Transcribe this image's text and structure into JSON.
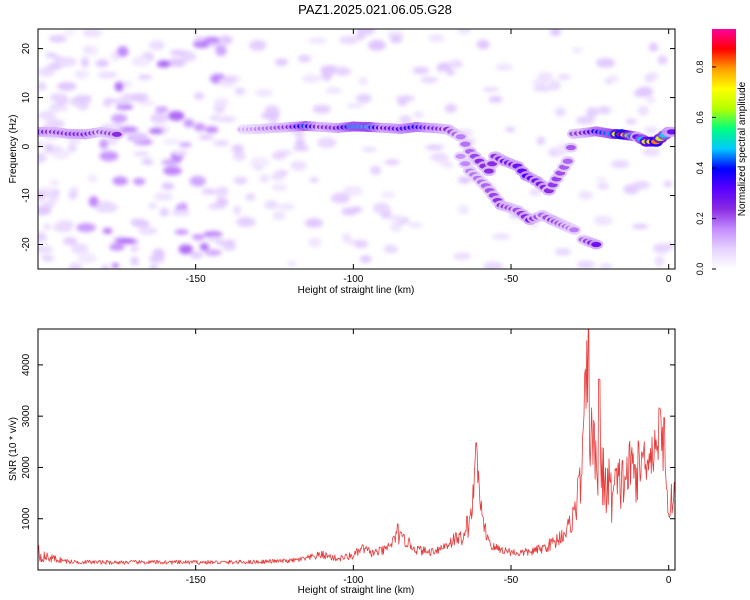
{
  "title": "PAZ1.2025.021.06.05.G28",
  "colors": {
    "snr_line": "#e83a3a",
    "colormap": [
      "#ffffff",
      "#e6d2ff",
      "#c48cff",
      "#8a2be2",
      "#5a00ff",
      "#0000ff",
      "#00c8ff",
      "#00ff80",
      "#b4ff00",
      "#ffff00",
      "#ffa000",
      "#ff0000",
      "#ff00a0"
    ]
  },
  "chart_data": [
    {
      "type": "heatmap",
      "xlabel": "Height of straight line (km)",
      "ylabel": "Frequency (Hz)",
      "xlim": [
        -200,
        2
      ],
      "ylim": [
        -25,
        24
      ],
      "xticks": [
        -150,
        -100,
        -50,
        0
      ],
      "xtick_labels": [
        "-150",
        "-100",
        "-50",
        "0"
      ],
      "yticks": [
        -20,
        -10,
        0,
        10,
        20
      ],
      "ytick_labels": [
        "-20",
        "-10",
        "0",
        "10",
        "20"
      ],
      "colorbar": {
        "label": "Normalized spectral amplitude",
        "range": [
          0,
          0.95
        ],
        "ticks": [
          0,
          0.2,
          0.4,
          0.6,
          0.8
        ],
        "tick_labels": [
          "0.0",
          "0.2",
          "0.4",
          "0.6",
          "0.8"
        ]
      },
      "ridge": [
        [
          -200,
          3,
          0.3
        ],
        [
          -195,
          3,
          0.25
        ],
        [
          -190,
          2.6,
          0.28
        ],
        [
          -185,
          2.5,
          0.3
        ],
        [
          -180,
          3,
          0.22
        ],
        [
          -175,
          2.5,
          0.25
        ],
        [
          -135,
          3.5,
          0.12
        ],
        [
          -130,
          3.6,
          0.18
        ],
        [
          -125,
          3.8,
          0.22
        ],
        [
          -120,
          4,
          0.26
        ],
        [
          -115,
          4.2,
          0.45
        ],
        [
          -110,
          4,
          0.25
        ],
        [
          -105,
          3.8,
          0.3
        ],
        [
          -100,
          4.1,
          0.48
        ],
        [
          -95,
          4,
          0.5
        ],
        [
          -90,
          3.8,
          0.3
        ],
        [
          -85,
          3.6,
          0.35
        ],
        [
          -80,
          4,
          0.42
        ],
        [
          -75,
          3.8,
          0.3
        ],
        [
          -70,
          3.5,
          0.25
        ],
        [
          -66,
          2,
          0.18
        ],
        [
          -63,
          -1,
          0.2
        ],
        [
          -60,
          -3,
          0.25
        ],
        [
          -57,
          -5,
          0.25
        ],
        [
          -55,
          -2,
          0.25
        ],
        [
          -52,
          -3,
          0.3
        ],
        [
          -48,
          -4,
          0.3
        ],
        [
          -45,
          -6,
          0.35
        ],
        [
          -42,
          -7,
          0.3
        ],
        [
          -38,
          -9,
          0.25
        ],
        [
          -32,
          -3,
          0.2
        ],
        [
          -30,
          2.6,
          0.22
        ],
        [
          -27,
          2.8,
          0.26
        ],
        [
          -23,
          3.1,
          0.4
        ],
        [
          -18,
          2.6,
          0.48
        ],
        [
          -15,
          2.5,
          0.95
        ],
        [
          -10,
          2,
          0.3
        ],
        [
          -7,
          1,
          0.7
        ],
        [
          -4,
          1,
          0.85
        ],
        [
          0,
          3,
          0.35
        ],
        [
          1,
          3,
          0.3
        ]
      ],
      "branches": [
        [
          -66,
          -2,
          0.16
        ],
        [
          -63,
          -5,
          0.18
        ],
        [
          -58,
          -8,
          0.2
        ],
        [
          -53,
          -12,
          0.26
        ],
        [
          -48,
          -13,
          0.22
        ],
        [
          -44,
          -15,
          0.28
        ],
        [
          -40,
          -14,
          0.2
        ],
        [
          -37,
          -15,
          0.25
        ],
        [
          -30,
          -17,
          0.18
        ],
        [
          -27,
          -19,
          0.2
        ],
        [
          -23,
          -20,
          0.3
        ]
      ]
    },
    {
      "type": "line",
      "xlabel": "Height of straight line (km)",
      "ylabel": "SNR (10 * v/v)",
      "xlim": [
        -200,
        2
      ],
      "ylim": [
        0,
        4700
      ],
      "xticks": [
        -150,
        -100,
        -50,
        0
      ],
      "xtick_labels": [
        "-150",
        "-100",
        "-50",
        "0"
      ],
      "yticks": [
        1000,
        2000,
        3000,
        4000
      ],
      "ytick_labels": [
        "1000",
        "2000",
        "3000",
        "4000"
      ],
      "grid": false,
      "envelope": [
        [
          -200,
          280,
          120
        ],
        [
          -190,
          160,
          40
        ],
        [
          -180,
          150,
          40
        ],
        [
          -170,
          150,
          40
        ],
        [
          -160,
          150,
          40
        ],
        [
          -150,
          150,
          40
        ],
        [
          -140,
          150,
          40
        ],
        [
          -130,
          160,
          40
        ],
        [
          -120,
          180,
          40
        ],
        [
          -115,
          220,
          60
        ],
        [
          -110,
          300,
          80
        ],
        [
          -105,
          220,
          60
        ],
        [
          -100,
          280,
          80
        ],
        [
          -97,
          420,
          100
        ],
        [
          -94,
          330,
          80
        ],
        [
          -90,
          380,
          100
        ],
        [
          -86,
          650,
          150
        ],
        [
          -83,
          550,
          120
        ],
        [
          -80,
          400,
          100
        ],
        [
          -76,
          350,
          80
        ],
        [
          -72,
          430,
          100
        ],
        [
          -68,
          600,
          150
        ],
        [
          -64,
          650,
          150
        ],
        [
          -62,
          1400,
          300
        ],
        [
          -61,
          2250,
          300
        ],
        [
          -59,
          900,
          200
        ],
        [
          -56,
          450,
          100
        ],
        [
          -52,
          380,
          80
        ],
        [
          -48,
          330,
          80
        ],
        [
          -44,
          350,
          80
        ],
        [
          -40,
          420,
          100
        ],
        [
          -36,
          550,
          150
        ],
        [
          -32,
          800,
          200
        ],
        [
          -30,
          1100,
          300
        ],
        [
          -28,
          1700,
          500
        ],
        [
          -27,
          2500,
          800
        ],
        [
          -26,
          3800,
          1000
        ],
        [
          -25,
          2800,
          800
        ],
        [
          -23,
          2000,
          700
        ],
        [
          -21,
          1800,
          700
        ],
        [
          -18,
          1500,
          600
        ],
        [
          -15,
          1700,
          600
        ],
        [
          -12,
          2000,
          600
        ],
        [
          -10,
          1900,
          600
        ],
        [
          -8,
          2200,
          500
        ],
        [
          -5,
          2300,
          500
        ],
        [
          -3,
          2700,
          600
        ],
        [
          -1,
          2200,
          500
        ],
        [
          0,
          1100,
          300
        ],
        [
          2,
          1700,
          400
        ]
      ],
      "peaks": [
        [
          -61,
          2480
        ],
        [
          -25.5,
          4700
        ],
        [
          -22,
          3720
        ],
        [
          -3,
          3160
        ],
        [
          -200,
          480
        ],
        [
          -86,
          900
        ],
        [
          -64,
          1050
        ],
        [
          -1.5,
          2970
        ]
      ]
    }
  ]
}
